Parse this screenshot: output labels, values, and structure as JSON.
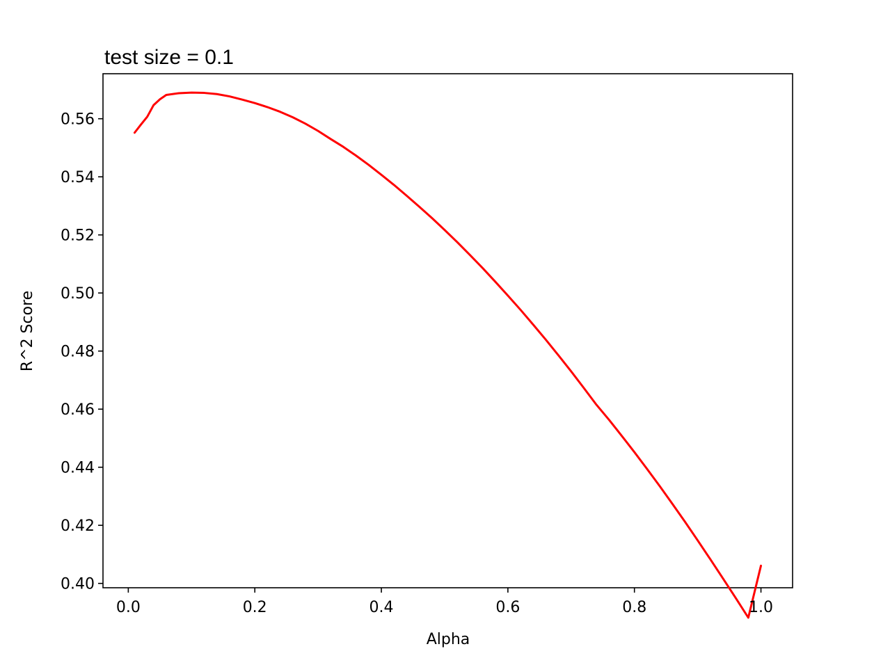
{
  "chart_data": {
    "type": "line",
    "title": "test size = 0.1",
    "xlabel": "Alpha",
    "ylabel": "R^2 Score",
    "xlim": [
      -0.04,
      1.05
    ],
    "ylim": [
      0.3985,
      0.5755
    ],
    "x_ticks": [
      0.0,
      0.2,
      0.4,
      0.6,
      0.8,
      1.0
    ],
    "x_tick_labels": [
      "0.0",
      "0.2",
      "0.4",
      "0.6",
      "0.8",
      "1.0"
    ],
    "y_ticks": [
      0.4,
      0.42,
      0.44,
      0.46,
      0.48,
      0.5,
      0.52,
      0.54,
      0.56
    ],
    "y_tick_labels": [
      "0.40",
      "0.42",
      "0.44",
      "0.46",
      "0.48",
      "0.50",
      "0.52",
      "0.54",
      "0.56"
    ],
    "grid": false,
    "series": [
      {
        "color": "#ff0000",
        "x": [
          0.01,
          0.02,
          0.03,
          0.04,
          0.05,
          0.06,
          0.08,
          0.1,
          0.12,
          0.14,
          0.16,
          0.18,
          0.2,
          0.22,
          0.24,
          0.26,
          0.28,
          0.3,
          0.32,
          0.34,
          0.36,
          0.38,
          0.4,
          0.42,
          0.44,
          0.46,
          0.48,
          0.5,
          0.52,
          0.54,
          0.56,
          0.58,
          0.6,
          0.62,
          0.64,
          0.66,
          0.68,
          0.7,
          0.72,
          0.74,
          0.76,
          0.78,
          0.8,
          0.82,
          0.84,
          0.86,
          0.88,
          0.9,
          0.92,
          0.94,
          0.96,
          0.98,
          1.0
        ],
        "y": [
          0.5552,
          0.558,
          0.5607,
          0.5647,
          0.5667,
          0.5682,
          0.5688,
          0.569,
          0.5689,
          0.5685,
          0.5677,
          0.5666,
          0.5654,
          0.564,
          0.5624,
          0.5605,
          0.5583,
          0.5558,
          0.553,
          0.5503,
          0.5473,
          0.5441,
          0.5407,
          0.5372,
          0.5335,
          0.5297,
          0.5258,
          0.5217,
          0.5175,
          0.5131,
          0.5086,
          0.5039,
          0.4991,
          0.4942,
          0.4891,
          0.4839,
          0.4785,
          0.473,
          0.4673,
          0.4615,
          0.4563,
          0.4508,
          0.4452,
          0.4394,
          0.4335,
          0.4274,
          0.4212,
          0.4148,
          0.4083,
          0.4017,
          0.395,
          0.3882,
          0.4061
        ]
      }
    ]
  }
}
